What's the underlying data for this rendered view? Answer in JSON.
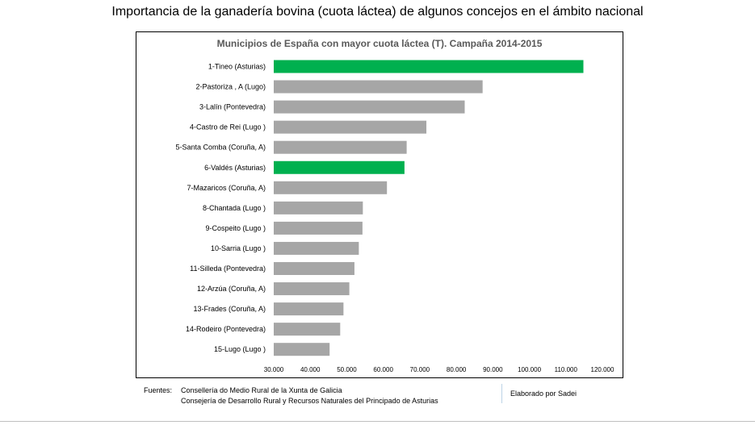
{
  "slide_title": "Importancia de la ganadería bovina (cuota láctea) de algunos concejos en el ámbito nacional",
  "footer": {
    "sources_label": "Fuentes:",
    "sources": [
      "Consellería do Medio Rural de la Xunta de Galicia",
      "Consejería de Desarrollo Rural y Recursos Naturales  del Principado de Asturias"
    ],
    "credit": "Elaborado por Sadei"
  },
  "colors": {
    "highlight": "#00b04f",
    "default": "#a6a6a6"
  },
  "chart_data": {
    "type": "bar",
    "orientation": "horizontal",
    "title": "Municipios de España con mayor cuota láctea (T). Campaña 2014-2015",
    "categories": [
      "1-Tineo  (Asturias)",
      "2-Pastoriza , A (Lugo)",
      "3-Lalín (Pontevedra)",
      "4-Castro de Rei (Lugo )",
      "5-Santa Comba (Coruña, A)",
      "6-Valdés (Asturias)",
      "7-Mazaricos (Coruña, A)",
      "8-Chantada (Lugo )",
      "9-Cospeito (Lugo )",
      "10-Sarria (Lugo )",
      "11-Silleda (Pontevedra)",
      "12-Arzúa (Coruña, A)",
      "13-Frades (Coruña, A)",
      "14-Rodeiro (Pontevedra)",
      "15-Lugo (Lugo )"
    ],
    "values": [
      114800,
      87200,
      82300,
      71800,
      66400,
      65800,
      61000,
      54400,
      54300,
      53300,
      52100,
      50700,
      49100,
      48200,
      45300
    ],
    "highlighted": [
      true,
      false,
      false,
      false,
      false,
      true,
      false,
      false,
      false,
      false,
      false,
      false,
      false,
      false,
      false
    ],
    "xlim": [
      30000,
      120000
    ],
    "xticks": [
      30000,
      40000,
      50000,
      60000,
      70000,
      80000,
      90000,
      100000,
      110000,
      120000
    ],
    "xtick_labels": [
      "30.000",
      "40.000",
      "50.000",
      "60.000",
      "70.000",
      "80.000",
      "90.000",
      "100.000",
      "110.000",
      "120.000"
    ],
    "grid": false,
    "legend": "none"
  }
}
